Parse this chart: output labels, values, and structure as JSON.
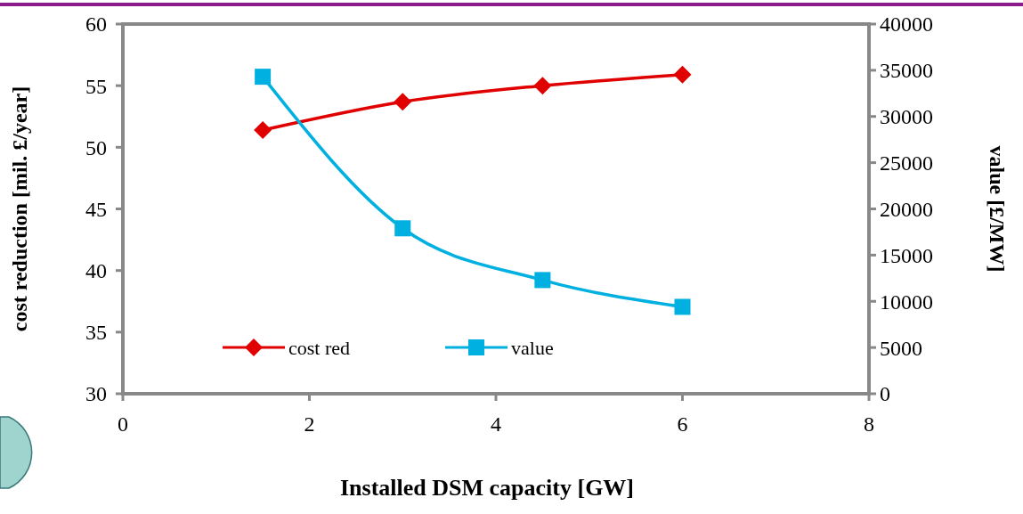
{
  "chart_data": {
    "type": "line",
    "xlabel": "Installed DSM capacity [GW]",
    "ylabel": "cost reduction [mil. £/year]",
    "y2label": "value [£/MW]",
    "x": [
      1.5,
      3,
      4.5,
      6
    ],
    "series": [
      {
        "name": "cost red",
        "color": "#e00000",
        "values": [
          51.4,
          53.7,
          55.0,
          55.9
        ],
        "marker": "diamond"
      },
      {
        "name": "value",
        "color": "#00b0e0",
        "values": [
          34300,
          17900,
          12300,
          9400
        ],
        "axis": "y2",
        "marker": "square"
      }
    ],
    "xlim": [
      0,
      8
    ],
    "xticks": [
      0,
      2,
      4,
      6,
      8
    ],
    "ylim": [
      30,
      60
    ],
    "yticks": [
      30,
      35,
      40,
      45,
      50,
      55,
      60
    ],
    "y2lim": [
      0,
      40000
    ],
    "y2ticks": [
      0,
      5000,
      10000,
      15000,
      20000,
      25000,
      30000,
      35000,
      40000
    ],
    "grid": false,
    "legend": "bottom left"
  }
}
